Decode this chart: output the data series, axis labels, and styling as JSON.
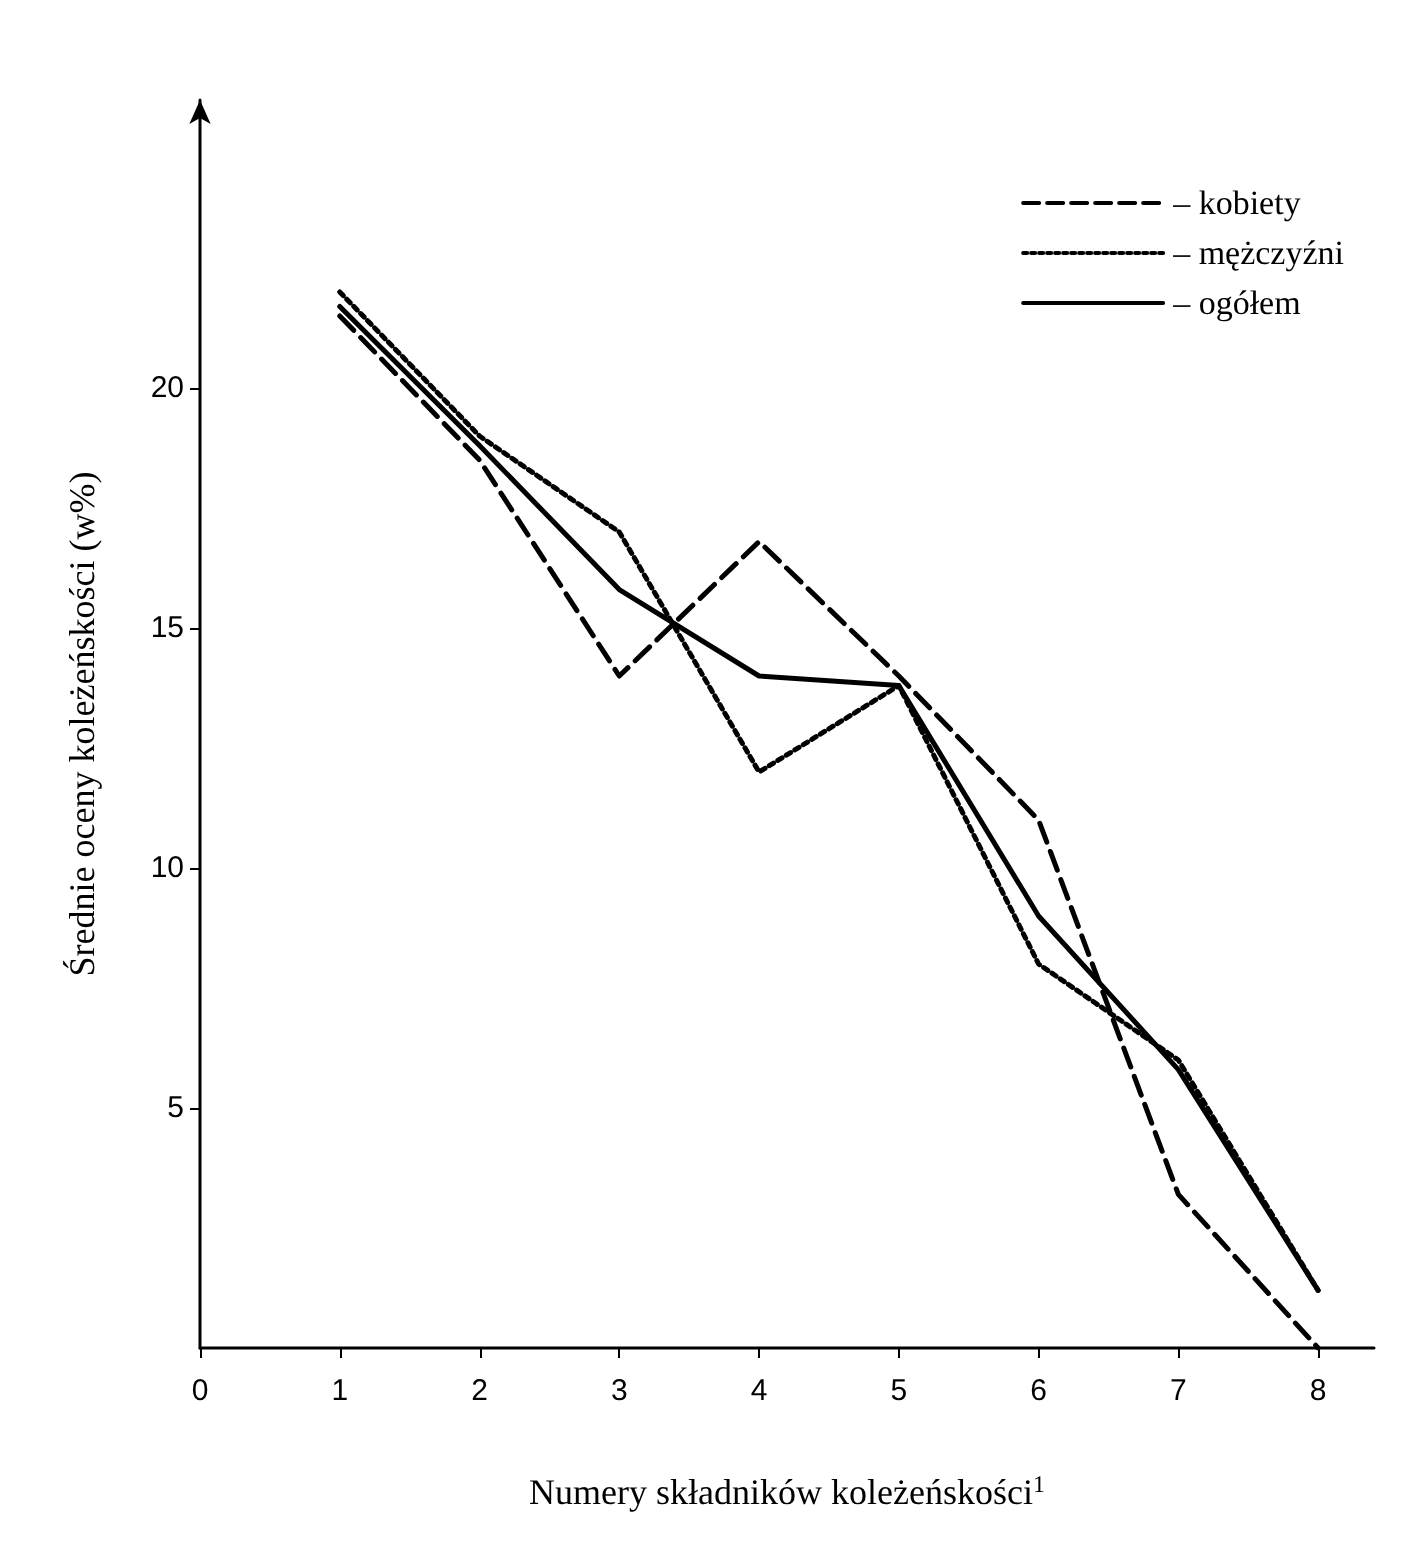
{
  "chart_data": {
    "type": "line",
    "xlabel": "Numery składników koleżeńskości$^{1}$",
    "ylabel": "Średnie oceny koleżeńskości (w%)",
    "x": [
      1,
      2,
      3,
      4,
      5,
      6,
      7,
      8
    ],
    "series": [
      {
        "name": "– kobiety",
        "color": "#000000",
        "line_style": "dashed",
        "values": [
          21.5,
          18.5,
          14,
          16.8,
          14,
          11,
          3.2,
          0
        ]
      },
      {
        "name": "– mężczyźni",
        "color": "#000000",
        "line_style": "dotted",
        "values": [
          22,
          19,
          17,
          12,
          13.8,
          8,
          6,
          1.2
        ]
      },
      {
        "name": "– ogółem",
        "color": "#000000",
        "line_style": "solid",
        "values": [
          21.7,
          18.8,
          15.8,
          14,
          13.8,
          9,
          5.8,
          1.2
        ]
      }
    ],
    "xlim": [
      0,
      8.4
    ],
    "xticks": [
      0,
      1,
      2,
      3,
      4,
      5,
      6,
      7,
      8
    ],
    "ylim": [
      0,
      26
    ],
    "yticks": [
      5,
      10,
      15,
      20
    ],
    "grid": false,
    "legend": "top right",
    "marker": "none"
  }
}
